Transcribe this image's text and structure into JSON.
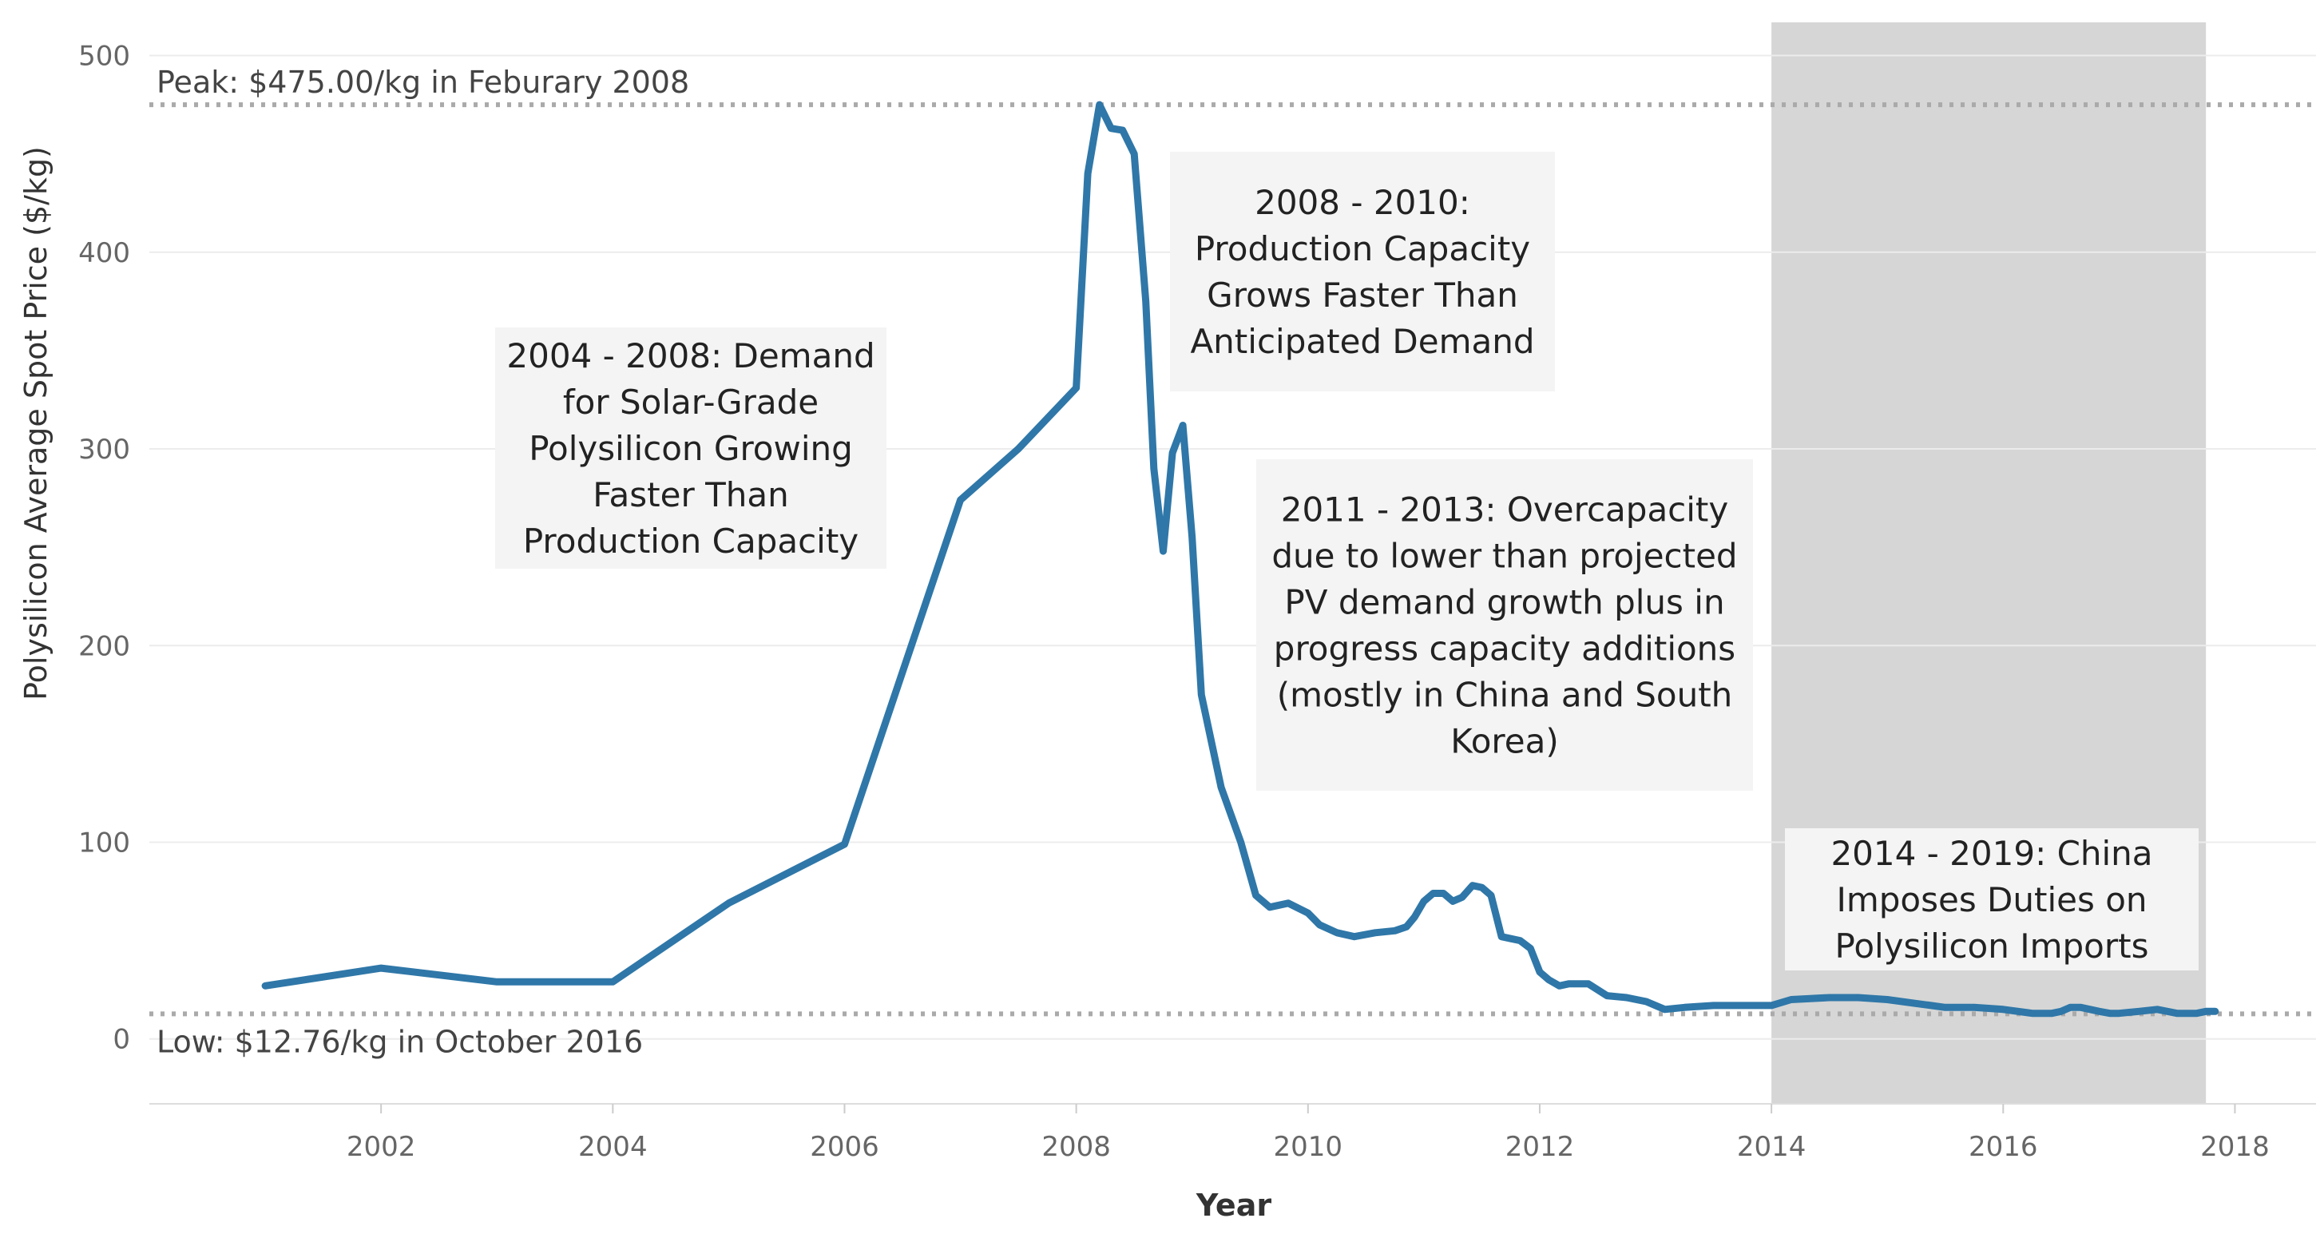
{
  "colors": {
    "line": "#2f77a8",
    "shade": "#d6d6d6",
    "grid": "#ececec",
    "ref_line": "#aaaaaa",
    "annotation_bg": "#f4f4f4"
  },
  "chart_data": {
    "type": "line",
    "title": "",
    "xlabel": "Year",
    "ylabel": "Polysilicon Average Spot Price ($/kg)",
    "xlim": [
      2000.0,
      2018.7
    ],
    "ylim": [
      -33,
      512
    ],
    "x_ticks": [
      2002,
      2004,
      2006,
      2008,
      2010,
      2012,
      2014,
      2016,
      2018
    ],
    "x_tick_labels": [
      "2002",
      "2004",
      "2006",
      "2008",
      "2010",
      "2012",
      "2014",
      "2016",
      "2018"
    ],
    "y_ticks": [
      0,
      100,
      200,
      300,
      400,
      500
    ],
    "y_tick_labels": [
      "0",
      "100",
      "200",
      "300",
      "400",
      "500"
    ],
    "grid": true,
    "series": [
      {
        "name": "Polysilicon Average Spot Price",
        "x": [
          2001.0,
          2002.0,
          2003.0,
          2004.0,
          2005.0,
          2006.0,
          2007.0,
          2007.5,
          2008.0,
          2008.1,
          2008.2,
          2008.3,
          2008.4,
          2008.5,
          2008.6,
          2008.67,
          2008.75,
          2008.83,
          2008.92,
          2009.0,
          2009.08,
          2009.25,
          2009.42,
          2009.55,
          2009.67,
          2009.83,
          2010.0,
          2010.1,
          2010.25,
          2010.4,
          2010.58,
          2010.75,
          2010.85,
          2010.92,
          2011.0,
          2011.08,
          2011.17,
          2011.25,
          2011.33,
          2011.42,
          2011.5,
          2011.58,
          2011.67,
          2011.75,
          2011.83,
          2011.92,
          2012.0,
          2012.08,
          2012.17,
          2012.25,
          2012.42,
          2012.58,
          2012.75,
          2012.92,
          2013.08,
          2013.25,
          2013.5,
          2013.75,
          2014.0,
          2014.17,
          2014.5,
          2014.75,
          2015.0,
          2015.25,
          2015.5,
          2015.75,
          2016.0,
          2016.25,
          2016.42,
          2016.5,
          2016.58,
          2016.67,
          2016.83,
          2016.92,
          2017.0,
          2017.17,
          2017.33,
          2017.5,
          2017.67,
          2017.75,
          2017.83
        ],
        "values": [
          27,
          36,
          29,
          29,
          69,
          99,
          274,
          300,
          331,
          440,
          475,
          463,
          462,
          450,
          375,
          290,
          248,
          298,
          312,
          255,
          175,
          128,
          100,
          73,
          67,
          69,
          64,
          58,
          54,
          52,
          54,
          55,
          57,
          62,
          70,
          74,
          74,
          70,
          72,
          78,
          77,
          73,
          52,
          51,
          50,
          46,
          34,
          30,
          27,
          28,
          28,
          22,
          21,
          19,
          15,
          16,
          17,
          17,
          17,
          20,
          21,
          21,
          20,
          18,
          16,
          16,
          15,
          13,
          13,
          14,
          16,
          16,
          14,
          13,
          13,
          14,
          15,
          13,
          13,
          14,
          14
        ]
      }
    ],
    "reference_lines": [
      {
        "name": "peak",
        "value": 475.0,
        "label": "Peak: $475.00/kg in Feburary 2008"
      },
      {
        "name": "low",
        "value": 12.76,
        "label": "Low: $12.76/kg in October 2016"
      }
    ],
    "shaded_region": {
      "x_start": 2014.0,
      "x_end": 2017.75
    },
    "annotations": [
      {
        "name": "2004-2008",
        "lines": [
          "2004 - 2008: Demand",
          "for Solar-Grade",
          "Polysilicon Growing",
          "Faster Than",
          "Production Capacity"
        ]
      },
      {
        "name": "2008-2010",
        "lines": [
          "2008 - 2010:",
          "Production Capacity",
          "Grows Faster Than",
          "Anticipated Demand"
        ]
      },
      {
        "name": "2011-2013",
        "lines": [
          "2011 - 2013: Overcapacity",
          "due to lower than projected",
          "PV demand growth plus in",
          "progress capacity additions",
          "(mostly in China and South",
          "Korea)"
        ]
      },
      {
        "name": "2014-2019",
        "lines": [
          "2014 - 2019: China",
          "Imposes Duties on",
          "Polysilicon Imports"
        ]
      }
    ]
  }
}
